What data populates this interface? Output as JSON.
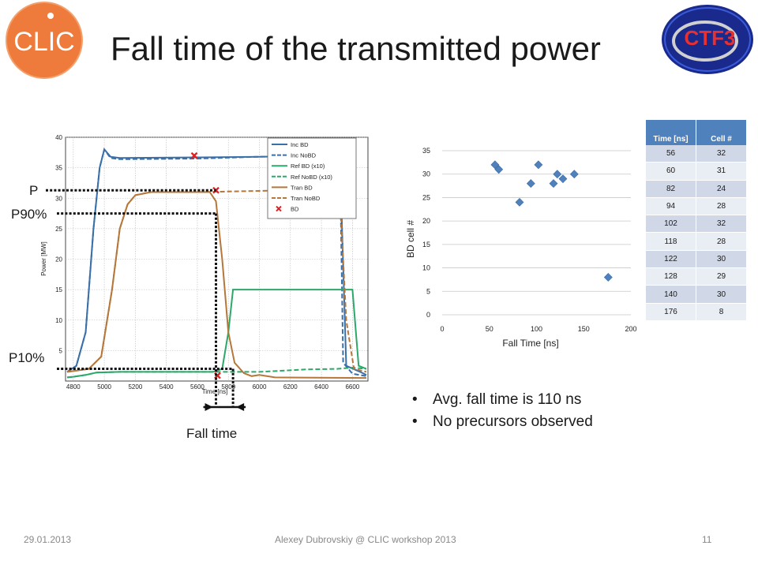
{
  "slide": {
    "title": "Fall time of the transmitted power",
    "footer_date": "29.01.2013",
    "footer_center": "Alexey Dubrovskiy @ CLIC workshop 2013",
    "page_number": "11",
    "clic_logo_text": "CLIC",
    "ctf_logo_text": "CTF3"
  },
  "annotations": {
    "p_label": "P",
    "p90_label": "P90%",
    "p10_label": "P10%",
    "fall_time_label": "Fall time"
  },
  "bullets": [
    "Avg. fall time is 110 ns",
    "No precursors observed"
  ],
  "table": {
    "headers": [
      "Time [ns]",
      "Cell #"
    ],
    "rows": [
      [
        "56",
        "32"
      ],
      [
        "60",
        "31"
      ],
      [
        "82",
        "24"
      ],
      [
        "94",
        "28"
      ],
      [
        "102",
        "32"
      ],
      [
        "118",
        "28"
      ],
      [
        "122",
        "30"
      ],
      [
        "128",
        "29"
      ],
      [
        "140",
        "30"
      ],
      [
        "176",
        "8"
      ]
    ]
  },
  "colors": {
    "inc": "#3a6fa8",
    "ref": "#2ca86a",
    "tran": "#b5773a",
    "bd": "#e02020",
    "scatter": "#4f81bd",
    "table_header": "#4f81bd"
  },
  "chart_data": [
    {
      "type": "line",
      "xlabel": "Time [ns]",
      "ylabel": "Power [MW]",
      "xlim": [
        4750,
        6700
      ],
      "ylim": [
        0,
        40
      ],
      "x_ticks": [
        4800,
        5000,
        5200,
        5400,
        5600,
        5800,
        6000,
        6200,
        6400,
        6600
      ],
      "y_ticks": [
        5,
        10,
        15,
        20,
        25,
        30,
        35,
        40
      ],
      "grid": true,
      "legend_position": "top-right",
      "legend": [
        "Inc BD",
        "Inc NoBD",
        "Ref BD (x10)",
        "Ref NoBD (x10)",
        "Tran BD",
        "Tran NoBD",
        "BD"
      ],
      "series": [
        {
          "name": "Inc BD",
          "style": "solid",
          "color": "inc",
          "points": [
            [
              4760,
              1.5
            ],
            [
              4820,
              2.5
            ],
            [
              4880,
              8
            ],
            [
              4930,
              25
            ],
            [
              4970,
              35
            ],
            [
              5000,
              38
            ],
            [
              5040,
              36.8
            ],
            [
              5100,
              36.6
            ],
            [
              5600,
              36.7
            ],
            [
              6000,
              36.8
            ],
            [
              6450,
              37
            ],
            [
              6520,
              36
            ],
            [
              6560,
              2.5
            ],
            [
              6650,
              1.5
            ],
            [
              6690,
              1.0
            ]
          ]
        },
        {
          "name": "Inc NoBD",
          "style": "dashed",
          "color": "inc",
          "points": [
            [
              4760,
              1.5
            ],
            [
              4820,
              2.5
            ],
            [
              4880,
              8
            ],
            [
              4930,
              25
            ],
            [
              4970,
              35
            ],
            [
              5000,
              38
            ],
            [
              5040,
              36.6
            ],
            [
              5100,
              36.4
            ],
            [
              5600,
              36.5
            ],
            [
              6000,
              36.8
            ],
            [
              6450,
              37
            ],
            [
              6520,
              36
            ],
            [
              6540,
              3
            ],
            [
              6600,
              1.2
            ],
            [
              6690,
              0.8
            ]
          ]
        },
        {
          "name": "Ref BD (x10)",
          "style": "solid",
          "color": "ref",
          "points": [
            [
              4760,
              0.6
            ],
            [
              4800,
              0.7
            ],
            [
              4880,
              1.0
            ],
            [
              4950,
              1.4
            ],
            [
              5100,
              1.5
            ],
            [
              5700,
              1.5
            ],
            [
              5760,
              2.0
            ],
            [
              5800,
              8
            ],
            [
              5830,
              15
            ],
            [
              6600,
              15
            ],
            [
              6640,
              2.5
            ],
            [
              6690,
              2.0
            ]
          ]
        },
        {
          "name": "Ref NoBD (x10)",
          "style": "dashed",
          "color": "ref",
          "points": [
            [
              4760,
              0.6
            ],
            [
              4800,
              0.7
            ],
            [
              4880,
              1.0
            ],
            [
              4950,
              1.4
            ],
            [
              5100,
              1.5
            ],
            [
              6000,
              1.5
            ],
            [
              6300,
              1.9
            ],
            [
              6500,
              2.0
            ],
            [
              6600,
              2.2
            ],
            [
              6690,
              2.0
            ]
          ]
        },
        {
          "name": "Tran BD",
          "style": "solid",
          "color": "tran",
          "points": [
            [
              4760,
              1.5
            ],
            [
              4900,
              2.0
            ],
            [
              4980,
              4
            ],
            [
              5050,
              15
            ],
            [
              5100,
              25
            ],
            [
              5150,
              29
            ],
            [
              5200,
              30.5
            ],
            [
              5300,
              31
            ],
            [
              5600,
              31
            ],
            [
              5680,
              31.0
            ],
            [
              5720,
              29.5
            ],
            [
              5760,
              20
            ],
            [
              5800,
              8
            ],
            [
              5840,
              3
            ],
            [
              5900,
              1.3
            ],
            [
              5950,
              0.8
            ],
            [
              6000,
              1.0
            ],
            [
              6100,
              0.6
            ],
            [
              6690,
              0.5
            ]
          ]
        },
        {
          "name": "Tran NoBD",
          "style": "dashed",
          "color": "tran",
          "points": [
            [
              4760,
              1.5
            ],
            [
              4900,
              2.0
            ],
            [
              4980,
              4
            ],
            [
              5050,
              15
            ],
            [
              5100,
              25
            ],
            [
              5150,
              29
            ],
            [
              5200,
              30.5
            ],
            [
              5300,
              31
            ],
            [
              5600,
              31
            ],
            [
              6000,
              31.2
            ],
            [
              6450,
              31.5
            ],
            [
              6520,
              30
            ],
            [
              6560,
              10
            ],
            [
              6610,
              2
            ],
            [
              6690,
              1.5
            ]
          ]
        }
      ],
      "bd_markers": [
        [
          5580,
          37
        ],
        [
          5720,
          31.3
        ],
        [
          5730,
          0.9
        ]
      ],
      "reference_levels": {
        "P": 31.3,
        "P90%": 27.5,
        "P10%": 2.0
      },
      "fall_time_range": [
        5720,
        5830
      ]
    },
    {
      "type": "scatter",
      "xlabel": "Fall Time [ns]",
      "ylabel": "BD cell #",
      "xlim": [
        0,
        200
      ],
      "ylim": [
        0,
        35
      ],
      "x_ticks": [
        0,
        50,
        100,
        150,
        200
      ],
      "y_ticks": [
        0,
        5,
        10,
        15,
        20,
        25,
        30,
        35
      ],
      "grid": true,
      "points": [
        [
          56,
          32
        ],
        [
          60,
          31
        ],
        [
          82,
          24
        ],
        [
          94,
          28
        ],
        [
          102,
          32
        ],
        [
          118,
          28
        ],
        [
          122,
          30
        ],
        [
          128,
          29
        ],
        [
          140,
          30
        ],
        [
          176,
          8
        ]
      ]
    }
  ]
}
